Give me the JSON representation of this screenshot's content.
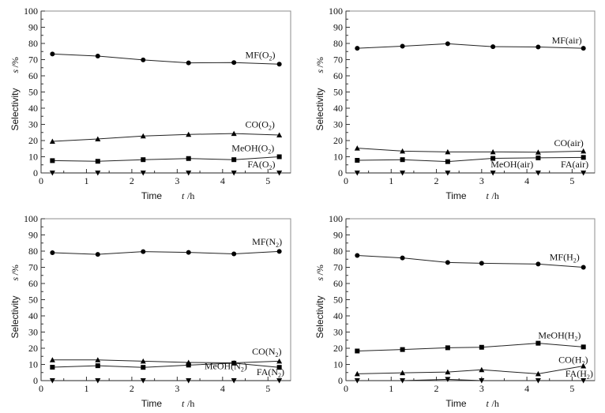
{
  "chart_data": [
    {
      "type": "line",
      "panel": "top-left",
      "title": "",
      "xlabel": "Time",
      "xlabel_symbol": "t",
      "xlabel_unit": "/h",
      "ylabel": "Selectivity",
      "ylabel_symbol": "s",
      "ylabel_unit": "/%",
      "xlim": [
        0,
        5.5
      ],
      "ylim": [
        0,
        100
      ],
      "xticks": [
        0,
        1,
        2,
        3,
        4,
        5
      ],
      "yticks": [
        0,
        10,
        20,
        30,
        40,
        50,
        60,
        70,
        80,
        90,
        100
      ],
      "grid": false,
      "series": [
        {
          "name": "MF",
          "gas": "O",
          "gas_sub": "2",
          "marker": "circle",
          "x": [
            0.25,
            1.25,
            2.25,
            3.25,
            4.25,
            5.25
          ],
          "values": [
            73.5,
            72.2,
            69.8,
            68.0,
            68.2,
            67.2
          ],
          "label_at": [
            4.5,
            71
          ]
        },
        {
          "name": "CO",
          "gas": "O",
          "gas_sub": "2",
          "marker": "triangle-up",
          "x": [
            0.25,
            1.25,
            2.25,
            3.25,
            4.25,
            5.25
          ],
          "values": [
            19.5,
            21.0,
            22.8,
            23.8,
            24.3,
            23.4
          ],
          "label_at": [
            4.5,
            28
          ]
        },
        {
          "name": "MeOH",
          "gas": "O",
          "gas_sub": "2",
          "marker": "square",
          "x": [
            0.25,
            1.25,
            2.25,
            3.25,
            4.25,
            5.25
          ],
          "values": [
            7.6,
            7.2,
            8.2,
            8.9,
            8.2,
            10.0
          ],
          "label_at": [
            4.2,
            13.5
          ]
        },
        {
          "name": "FA",
          "gas": "O",
          "gas_sub": "2",
          "marker": "triangle-down",
          "x": [
            0.25,
            1.25,
            2.25,
            3.25,
            4.25,
            5.25
          ],
          "values": [
            0,
            0,
            0,
            0,
            0,
            0
          ],
          "label_at": [
            4.55,
            3.5
          ]
        }
      ]
    },
    {
      "type": "line",
      "panel": "top-right",
      "title": "",
      "xlabel": "Time",
      "xlabel_symbol": "t",
      "xlabel_unit": "/h",
      "ylabel": "Selectivity",
      "ylabel_symbol": "s",
      "ylabel_unit": "/%",
      "xlim": [
        0,
        5.5
      ],
      "ylim": [
        0,
        100
      ],
      "xticks": [
        0,
        1,
        2,
        3,
        4,
        5
      ],
      "yticks": [
        0,
        10,
        20,
        30,
        40,
        50,
        60,
        70,
        80,
        90,
        100
      ],
      "grid": false,
      "series": [
        {
          "name": "MF",
          "gas": "air",
          "gas_sub": "",
          "marker": "circle",
          "x": [
            0.25,
            1.25,
            2.25,
            3.25,
            4.25,
            5.25
          ],
          "values": [
            77.0,
            78.3,
            79.8,
            78.0,
            77.8,
            77.0
          ],
          "label_at": [
            4.55,
            80
          ]
        },
        {
          "name": "CO",
          "gas": "air",
          "gas_sub": "",
          "marker": "triangle-up",
          "x": [
            0.25,
            1.25,
            2.25,
            3.25,
            4.25,
            5.25
          ],
          "values": [
            15.3,
            13.5,
            13.0,
            13.0,
            12.8,
            13.5
          ],
          "label_at": [
            4.6,
            16.5
          ]
        },
        {
          "name": "MeOH",
          "gas": "air",
          "gas_sub": "",
          "marker": "square",
          "x": [
            0.25,
            1.25,
            2.25,
            3.25,
            4.25,
            5.25
          ],
          "values": [
            7.8,
            8.2,
            7.0,
            9.0,
            9.3,
            9.6
          ],
          "label_at": [
            3.2,
            3.5
          ]
        },
        {
          "name": "FA",
          "gas": "air",
          "gas_sub": "",
          "marker": "triangle-down",
          "x": [
            0.25,
            1.25,
            2.25,
            3.25,
            4.25,
            5.25
          ],
          "values": [
            0,
            0,
            0,
            0,
            0,
            0
          ],
          "label_at": [
            4.75,
            3.5
          ]
        }
      ]
    },
    {
      "type": "line",
      "panel": "bottom-left",
      "title": "",
      "xlabel": "Time",
      "xlabel_symbol": "t",
      "xlabel_unit": "/h",
      "ylabel": "Selectivity",
      "ylabel_symbol": "s",
      "ylabel_unit": "/%",
      "xlim": [
        0,
        5.5
      ],
      "ylim": [
        0,
        100
      ],
      "xticks": [
        0,
        1,
        2,
        3,
        4,
        5
      ],
      "yticks": [
        0,
        10,
        20,
        30,
        40,
        50,
        60,
        70,
        80,
        90,
        100
      ],
      "grid": false,
      "series": [
        {
          "name": "MF",
          "gas": "N",
          "gas_sub": "2",
          "marker": "circle",
          "x": [
            0.25,
            1.25,
            2.25,
            3.25,
            4.25,
            5.25
          ],
          "values": [
            79.0,
            78.0,
            79.7,
            79.2,
            78.3,
            79.8
          ],
          "label_at": [
            4.65,
            84
          ]
        },
        {
          "name": "CO",
          "gas": "N",
          "gas_sub": "2",
          "marker": "triangle-up",
          "x": [
            0.25,
            1.25,
            2.25,
            3.25,
            4.25,
            5.25
          ],
          "values": [
            12.8,
            12.8,
            12.0,
            11.2,
            11.0,
            12.0
          ],
          "label_at": [
            4.65,
            16
          ]
        },
        {
          "name": "MeOH",
          "gas": "N",
          "gas_sub": "2",
          "marker": "square",
          "x": [
            0.25,
            1.25,
            2.25,
            3.25,
            4.25,
            5.25
          ],
          "values": [
            8.3,
            9.2,
            8.2,
            9.6,
            10.8,
            8.2
          ],
          "label_at": [
            3.6,
            7
          ]
        },
        {
          "name": "FA",
          "gas": "N",
          "gas_sub": "2",
          "marker": "triangle-down",
          "x": [
            0.25,
            1.25,
            2.25,
            3.25,
            4.25,
            5.25
          ],
          "values": [
            0,
            0,
            0,
            0,
            0,
            0
          ],
          "label_at": [
            4.75,
            3.5
          ]
        }
      ]
    },
    {
      "type": "line",
      "panel": "bottom-right",
      "title": "",
      "xlabel": "Time",
      "xlabel_symbol": "t",
      "xlabel_unit": "/h",
      "ylabel": "Selectivity",
      "ylabel_symbol": "s",
      "ylabel_unit": "/%",
      "xlim": [
        0,
        5.5
      ],
      "ylim": [
        0,
        100
      ],
      "xticks": [
        0,
        1,
        2,
        3,
        4,
        5
      ],
      "yticks": [
        0,
        10,
        20,
        30,
        40,
        50,
        60,
        70,
        80,
        90,
        100
      ],
      "grid": false,
      "series": [
        {
          "name": "MF",
          "gas": "H",
          "gas_sub": "2",
          "marker": "circle",
          "x": [
            0.25,
            1.25,
            2.25,
            3.0,
            4.25,
            5.25
          ],
          "values": [
            77.3,
            75.8,
            73.0,
            72.5,
            72.0,
            70.0
          ],
          "label_at": [
            4.5,
            74.5
          ]
        },
        {
          "name": "MeOH",
          "gas": "H",
          "gas_sub": "2",
          "marker": "square",
          "x": [
            0.25,
            1.25,
            2.25,
            3.0,
            4.25,
            5.25
          ],
          "values": [
            18.3,
            19.2,
            20.3,
            20.6,
            23.1,
            20.8
          ],
          "label_at": [
            4.25,
            26
          ]
        },
        {
          "name": "CO",
          "gas": "H",
          "gas_sub": "2",
          "marker": "triangle-up",
          "x": [
            0.25,
            1.25,
            2.25,
            3.0,
            4.25,
            5.25
          ],
          "values": [
            4.2,
            4.8,
            5.3,
            6.7,
            4.2,
            9.0
          ],
          "label_at": [
            4.7,
            11
          ]
        },
        {
          "name": "FA",
          "gas": "H",
          "gas_sub": "2",
          "marker": "triangle-down",
          "x": [
            0.25,
            1.25,
            2.25,
            3.0,
            4.25,
            5.25
          ],
          "values": [
            0,
            0,
            0.8,
            0,
            0,
            0
          ],
          "label_at": [
            4.85,
            2.5
          ]
        }
      ]
    }
  ]
}
